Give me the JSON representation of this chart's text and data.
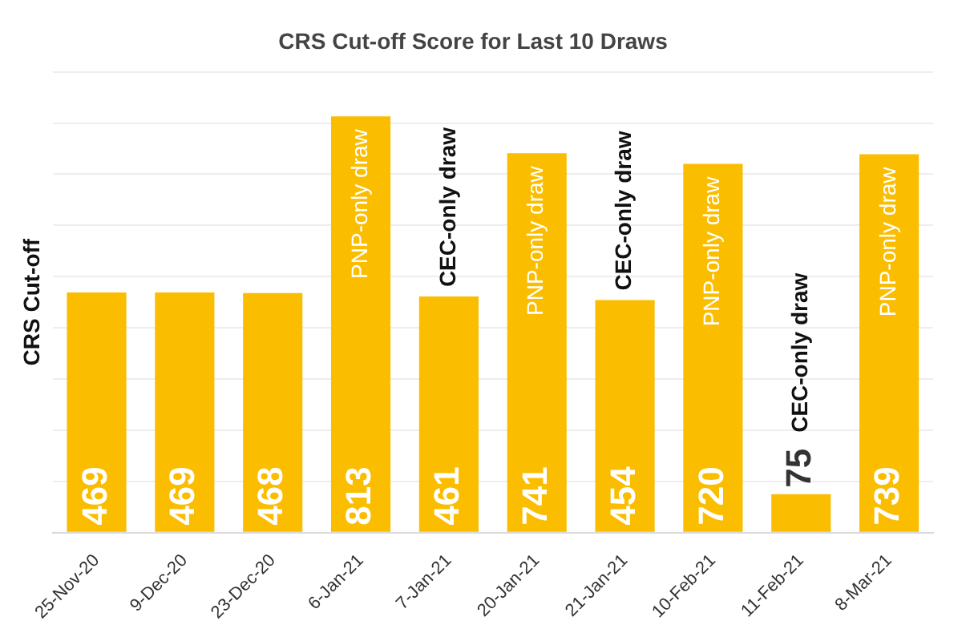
{
  "chart_data": {
    "type": "bar",
    "title": "CRS Cut-off Score for Last 10 Draws",
    "ylabel": "CRS Cut-off",
    "categories": [
      "25-Nov-20",
      "9-Dec-20",
      "23-Dec-20",
      "6-Jan-21",
      "7-Jan-21",
      "20-Jan-21",
      "21-Jan-21",
      "10-Feb-21",
      "11-Feb-21",
      "8-Mar-21"
    ],
    "values": [
      469,
      469,
      468,
      813,
      461,
      741,
      454,
      720,
      75,
      739
    ],
    "color": "#fbbd00",
    "ylim": [
      0,
      900
    ],
    "yticks": [
      {
        "value": 0,
        "label": null
      },
      {
        "value": 100,
        "label": null
      },
      {
        "value": 200,
        "label": null
      },
      {
        "value": 300,
        "label": null
      },
      {
        "value": 400,
        "label": null
      },
      {
        "value": 500,
        "label": null
      },
      {
        "value": 600,
        "label": null
      },
      {
        "value": 700,
        "label": null
      },
      {
        "value": 800,
        "label": null
      },
      {
        "value": 900,
        "label": null
      }
    ],
    "grid": "y",
    "data_labels": true,
    "tick_labels": "x",
    "annotations": [
      {
        "text": "PNP-only draw",
        "x": "6-Jan-21",
        "y": 813
      },
      {
        "text": "CEC-only draw",
        "x": "7-Jan-21",
        "y": 461
      },
      {
        "text": "PNP-only draw",
        "x": "20-Jan-21",
        "y": 741
      },
      {
        "text": "CEC-only draw",
        "x": "21-Jan-21",
        "y": 454
      },
      {
        "text": "PNP-only draw",
        "x": "10-Feb-21",
        "y": 720
      },
      {
        "text": "CEC-only draw",
        "x": "11-Feb-21",
        "y": 75
      },
      {
        "text": "PNP-only draw",
        "x": "8-Mar-21",
        "y": 739
      }
    ]
  }
}
